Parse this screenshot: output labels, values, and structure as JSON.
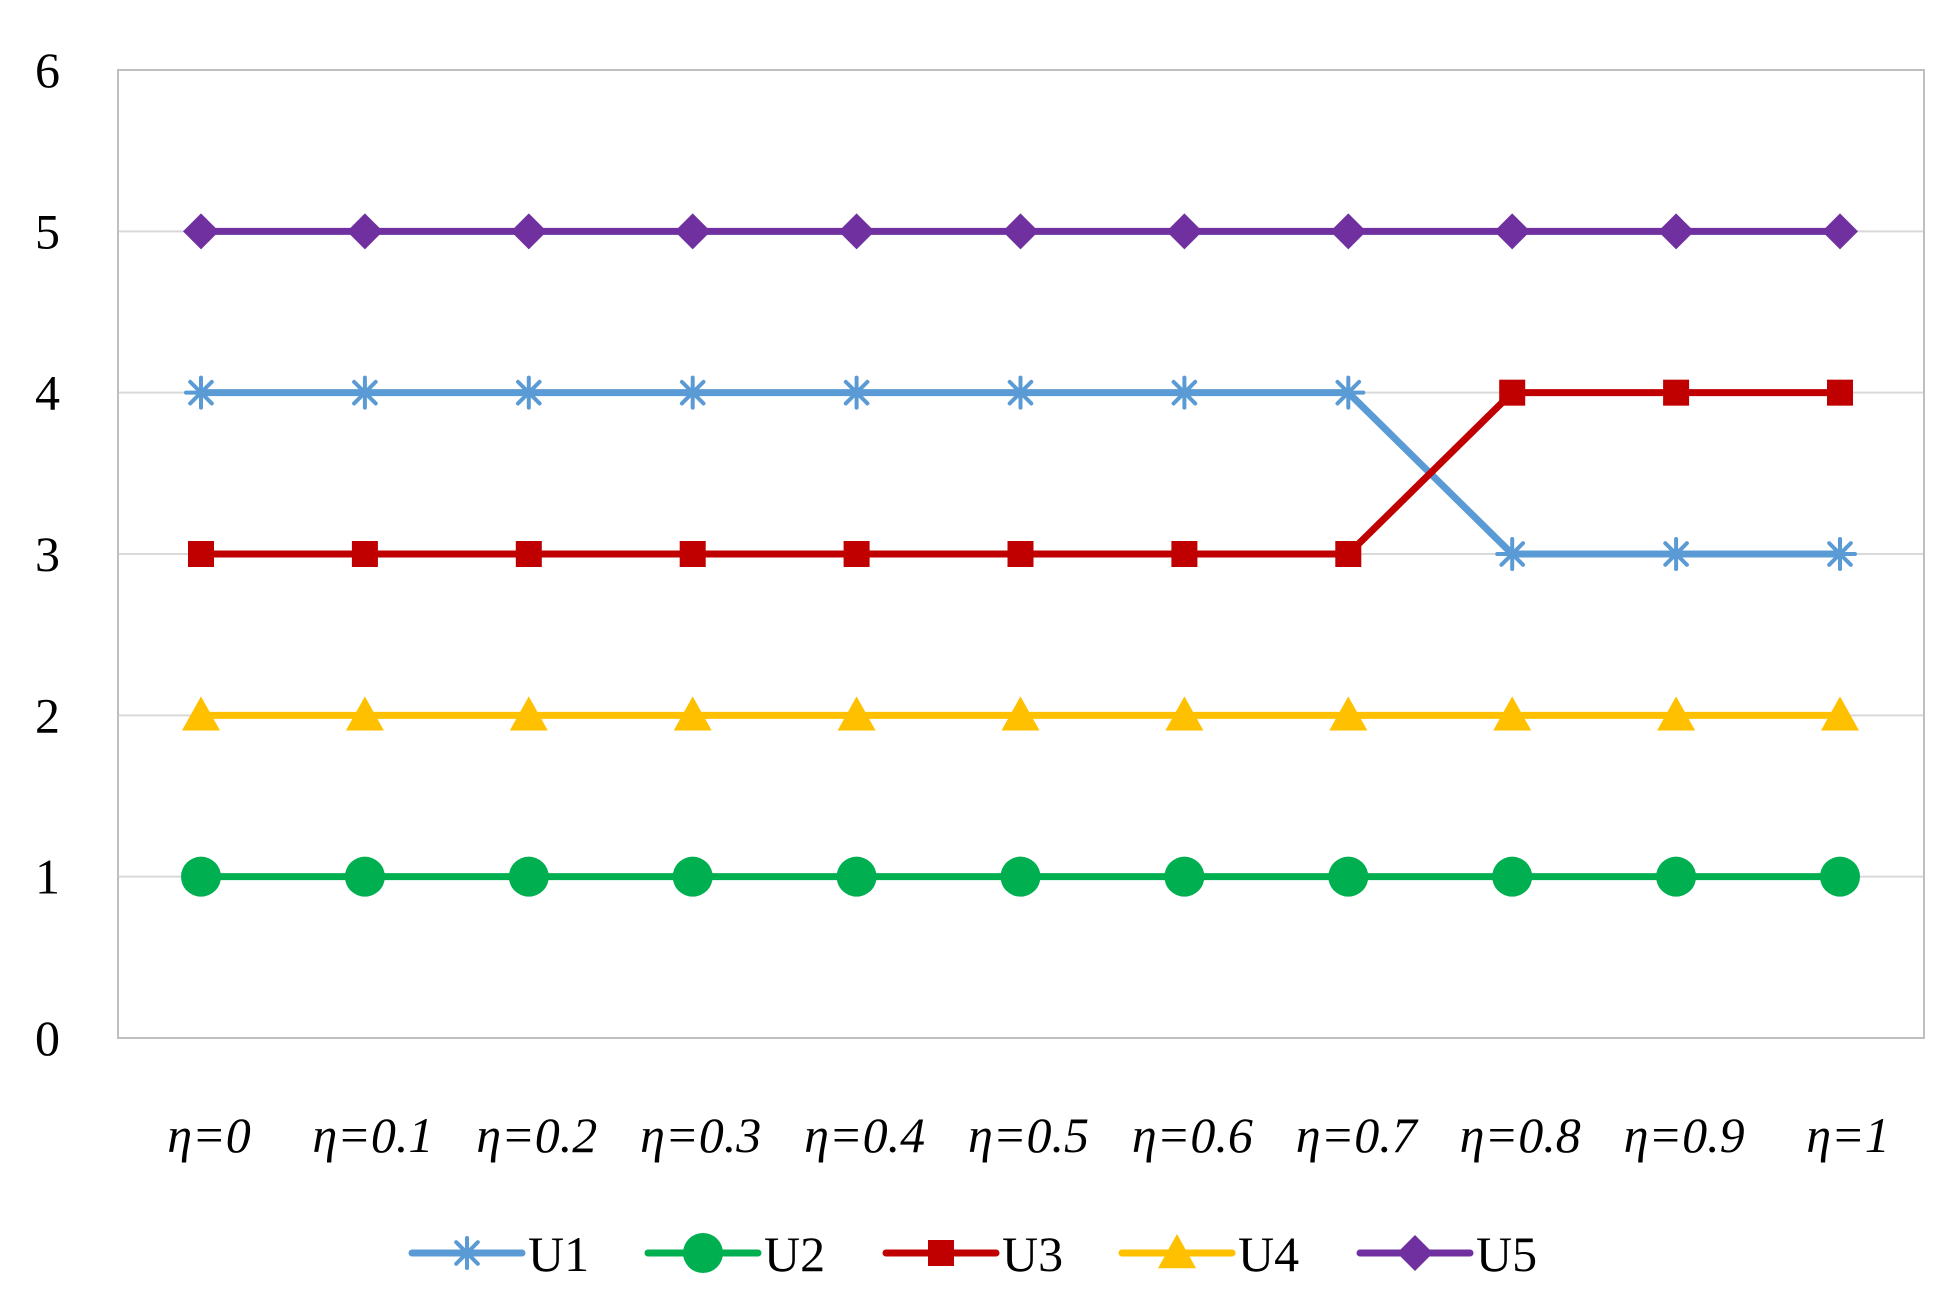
{
  "chart_data": {
    "type": "line",
    "title": "",
    "xlabel": "",
    "ylabel": "",
    "categories": [
      "η=0",
      "η=0.1",
      "η=0.2",
      "η=0.3",
      "η=0.4",
      "η=0.5",
      "η=0.6",
      "η=0.7",
      "η=0.8",
      "η=0.9",
      "η=1"
    ],
    "y_ticks": [
      "0",
      "1",
      "2",
      "3",
      "4",
      "5",
      "6"
    ],
    "ylim": [
      0,
      6
    ],
    "grid": "horizontal",
    "legend_position": "bottom",
    "series": [
      {
        "name": "U1",
        "color": "#5B9BD5",
        "marker": "asterisk",
        "values": [
          4,
          4,
          4,
          4,
          4,
          4,
          4,
          4,
          3,
          3,
          3
        ]
      },
      {
        "name": "U2",
        "color": "#00B050",
        "marker": "circle",
        "values": [
          1,
          1,
          1,
          1,
          1,
          1,
          1,
          1,
          1,
          1,
          1
        ]
      },
      {
        "name": "U3",
        "color": "#C00000",
        "marker": "square",
        "values": [
          3,
          3,
          3,
          3,
          3,
          3,
          3,
          3,
          4,
          4,
          4
        ]
      },
      {
        "name": "U4",
        "color": "#FFC000",
        "marker": "triangle",
        "values": [
          2,
          2,
          2,
          2,
          2,
          2,
          2,
          2,
          2,
          2,
          2
        ]
      },
      {
        "name": "U5",
        "color": "#7030A0",
        "marker": "diamond",
        "values": [
          5,
          5,
          5,
          5,
          5,
          5,
          5,
          5,
          5,
          5,
          5
        ]
      }
    ]
  }
}
